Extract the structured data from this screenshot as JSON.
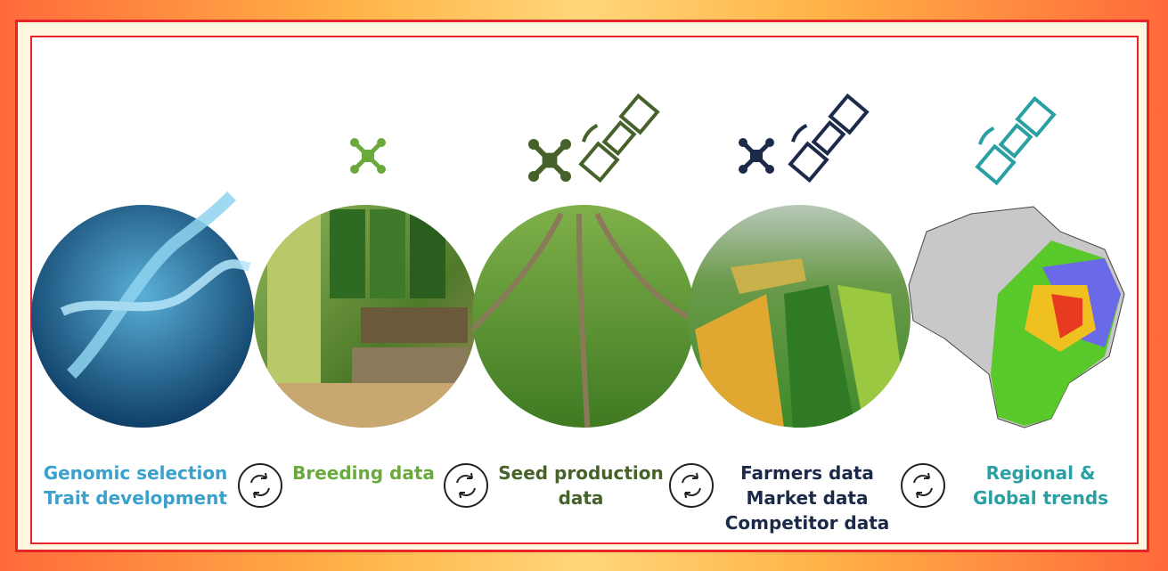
{
  "stages": [
    {
      "lines": [
        "Genomic selection",
        "Trait development"
      ]
    },
    {
      "lines": [
        "Breeding data"
      ]
    },
    {
      "lines": [
        "Seed production",
        "data"
      ]
    },
    {
      "lines": [
        "Farmers data",
        "Market data",
        "Competitor data"
      ]
    },
    {
      "lines": [
        "Regional &",
        "Global trends"
      ]
    }
  ]
}
